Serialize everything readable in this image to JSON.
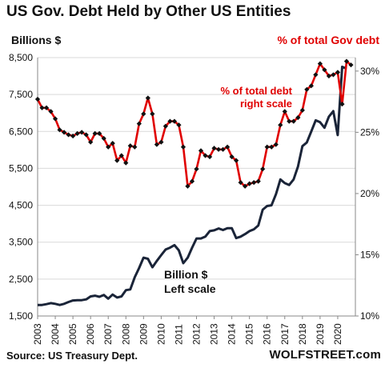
{
  "header": {
    "title": "US Gov. Debt Held by Other US Entities",
    "source": "Source: US Treasury Dept.",
    "brand": "WOLFSTREET.com"
  },
  "colors": {
    "debt_line": "#1a2438",
    "percent_line": "#e00000",
    "percent_marker": "#111111",
    "grid": "#d9d9d9",
    "text": "#111111"
  },
  "chart_data": {
    "type": "line",
    "title": "US Gov. Debt Held by Other US Entities",
    "x_ticks": [
      "2003",
      "2004",
      "2005",
      "2006",
      "2007",
      "2008",
      "2009",
      "2010",
      "2011",
      "2012",
      "2013",
      "2014",
      "2015",
      "2016",
      "2017",
      "2018",
      "2019",
      "2020"
    ],
    "xlim": [
      2003,
      2021
    ],
    "left_axis": {
      "label": "Billions $",
      "ticks": [
        "8,500",
        "7,500",
        "6,500",
        "5,500",
        "4,500",
        "3,500",
        "2,500",
        "1,500"
      ],
      "tick_values": [
        8500,
        7500,
        6500,
        5500,
        4500,
        3500,
        2500,
        1500
      ],
      "ylim": [
        1500,
        8500
      ]
    },
    "right_axis": {
      "label": "% of total Gov debt",
      "ticks": [
        "30%",
        "25%",
        "20%",
        "15%",
        "10%"
      ],
      "tick_values": [
        30,
        25,
        20,
        15,
        10
      ],
      "ylim": [
        10,
        31.1
      ]
    },
    "grid": true,
    "annotations": [
      {
        "lines": [
          "% of total debt",
          "right scale"
        ],
        "color": "#e00000"
      },
      {
        "lines": [
          "Billion $",
          "Left scale"
        ],
        "color": "#111111"
      }
    ],
    "series": [
      {
        "name": "Billion $",
        "axis": "left",
        "points": [
          [
            2003.0,
            1800
          ],
          [
            2003.25,
            1800
          ],
          [
            2003.5,
            1820
          ],
          [
            2003.75,
            1850
          ],
          [
            2004.0,
            1830
          ],
          [
            2004.25,
            1800
          ],
          [
            2004.5,
            1830
          ],
          [
            2004.75,
            1880
          ],
          [
            2005.0,
            1920
          ],
          [
            2005.25,
            1930
          ],
          [
            2005.5,
            1930
          ],
          [
            2005.75,
            1950
          ],
          [
            2006.0,
            2030
          ],
          [
            2006.25,
            2050
          ],
          [
            2006.5,
            2020
          ],
          [
            2006.75,
            2070
          ],
          [
            2007.0,
            1970
          ],
          [
            2007.25,
            2080
          ],
          [
            2007.5,
            2000
          ],
          [
            2007.75,
            2030
          ],
          [
            2008.0,
            2200
          ],
          [
            2008.25,
            2220
          ],
          [
            2008.5,
            2550
          ],
          [
            2008.75,
            2800
          ],
          [
            2009.0,
            3080
          ],
          [
            2009.25,
            3050
          ],
          [
            2009.5,
            2820
          ],
          [
            2009.75,
            2990
          ],
          [
            2010.0,
            3150
          ],
          [
            2010.25,
            3300
          ],
          [
            2010.5,
            3350
          ],
          [
            2010.75,
            3420
          ],
          [
            2011.0,
            3280
          ],
          [
            2011.25,
            2930
          ],
          [
            2011.5,
            3080
          ],
          [
            2011.75,
            3350
          ],
          [
            2012.0,
            3600
          ],
          [
            2012.25,
            3600
          ],
          [
            2012.5,
            3650
          ],
          [
            2012.75,
            3800
          ],
          [
            2013.0,
            3820
          ],
          [
            2013.25,
            3870
          ],
          [
            2013.5,
            3830
          ],
          [
            2013.75,
            3880
          ],
          [
            2014.0,
            3880
          ],
          [
            2014.25,
            3610
          ],
          [
            2014.5,
            3650
          ],
          [
            2014.75,
            3720
          ],
          [
            2015.0,
            3800
          ],
          [
            2015.25,
            3850
          ],
          [
            2015.5,
            3950
          ],
          [
            2015.75,
            4380
          ],
          [
            2016.0,
            4480
          ],
          [
            2016.25,
            4500
          ],
          [
            2016.5,
            4800
          ],
          [
            2016.75,
            5200
          ],
          [
            2017.0,
            5100
          ],
          [
            2017.25,
            5050
          ],
          [
            2017.5,
            5200
          ],
          [
            2017.75,
            5550
          ],
          [
            2018.0,
            6100
          ],
          [
            2018.25,
            6200
          ],
          [
            2018.5,
            6500
          ],
          [
            2018.75,
            6800
          ],
          [
            2019.0,
            6750
          ],
          [
            2019.25,
            6600
          ],
          [
            2019.5,
            6900
          ],
          [
            2019.75,
            7050
          ],
          [
            2020.0,
            6400
          ],
          [
            2020.25,
            8250
          ],
          [
            2020.5,
            8200
          ]
        ]
      },
      {
        "name": "% of total debt",
        "axis": "right",
        "points": [
          [
            2003.0,
            27.7
          ],
          [
            2003.25,
            27.0
          ],
          [
            2003.5,
            27.0
          ],
          [
            2003.75,
            26.7
          ],
          [
            2004.0,
            26.1
          ],
          [
            2004.25,
            25.2
          ],
          [
            2004.5,
            25.0
          ],
          [
            2004.75,
            24.8
          ],
          [
            2005.0,
            24.7
          ],
          [
            2005.25,
            24.9
          ],
          [
            2005.5,
            25.0
          ],
          [
            2005.75,
            24.8
          ],
          [
            2006.0,
            24.2
          ],
          [
            2006.25,
            24.9
          ],
          [
            2006.5,
            24.9
          ],
          [
            2006.75,
            24.5
          ],
          [
            2007.0,
            23.8
          ],
          [
            2007.25,
            24.1
          ],
          [
            2007.5,
            22.7
          ],
          [
            2007.75,
            23.1
          ],
          [
            2008.0,
            22.5
          ],
          [
            2008.25,
            23.9
          ],
          [
            2008.5,
            23.8
          ],
          [
            2008.75,
            25.7
          ],
          [
            2009.0,
            26.5
          ],
          [
            2009.25,
            27.8
          ],
          [
            2009.5,
            26.5
          ],
          [
            2009.75,
            24.0
          ],
          [
            2010.0,
            24.2
          ],
          [
            2010.25,
            25.5
          ],
          [
            2010.5,
            25.9
          ],
          [
            2010.75,
            25.9
          ],
          [
            2011.0,
            25.6
          ],
          [
            2011.25,
            23.8
          ],
          [
            2011.5,
            20.6
          ],
          [
            2011.75,
            21.0
          ],
          [
            2012.0,
            22.0
          ],
          [
            2012.25,
            23.5
          ],
          [
            2012.5,
            23.1
          ],
          [
            2012.75,
            23.0
          ],
          [
            2013.0,
            23.7
          ],
          [
            2013.25,
            23.6
          ],
          [
            2013.5,
            23.6
          ],
          [
            2013.75,
            23.8
          ],
          [
            2014.0,
            23.0
          ],
          [
            2014.25,
            22.7
          ],
          [
            2014.5,
            20.9
          ],
          [
            2014.75,
            20.6
          ],
          [
            2015.0,
            20.8
          ],
          [
            2015.25,
            20.9
          ],
          [
            2015.5,
            21.0
          ],
          [
            2015.75,
            22.0
          ],
          [
            2016.0,
            23.8
          ],
          [
            2016.25,
            23.8
          ],
          [
            2016.5,
            24.0
          ],
          [
            2016.75,
            25.6
          ],
          [
            2017.0,
            26.7
          ],
          [
            2017.25,
            25.9
          ],
          [
            2017.5,
            25.9
          ],
          [
            2017.75,
            26.2
          ],
          [
            2018.0,
            26.8
          ],
          [
            2018.25,
            28.5
          ],
          [
            2018.5,
            28.8
          ],
          [
            2018.75,
            29.7
          ],
          [
            2019.0,
            30.6
          ],
          [
            2019.25,
            30.1
          ],
          [
            2019.5,
            29.6
          ],
          [
            2019.75,
            29.7
          ],
          [
            2020.0,
            29.9
          ],
          [
            2020.25,
            27.3
          ],
          [
            2020.5,
            30.8
          ],
          [
            2020.75,
            30.5
          ]
        ]
      }
    ]
  }
}
